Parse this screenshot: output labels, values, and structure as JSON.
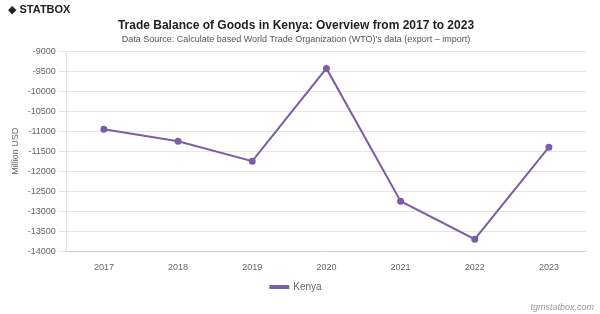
{
  "chart_data": {
    "type": "line",
    "title": "Trade Balance of Goods in Kenya: Overview from 2017 to 2023",
    "subtitle": "Data Source: Calculate based World Trade Organization (WTO)'s data (export – import)",
    "x": [
      2017,
      2018,
      2019,
      2020,
      2021,
      2022,
      2023
    ],
    "series": [
      {
        "name": "Kenya",
        "color": "#7b5ea7",
        "values": [
          -10950,
          -11250,
          -11750,
          -9430,
          -12750,
          -13700,
          -11400
        ]
      }
    ],
    "ylabel": "Million USD",
    "xlim": [
      2016.5,
      2023.5
    ],
    "xticks": [
      2017,
      2018,
      2019,
      2020,
      2021,
      2022,
      2023
    ],
    "ylim": [
      -14000,
      -9000
    ],
    "yticks": [
      -9000,
      -9500,
      -10000,
      -10500,
      -11000,
      -11500,
      -12000,
      -12500,
      -13000,
      -13500,
      -14000
    ],
    "grid": "y",
    "legend": "bottom",
    "annotations": [
      "◆ STATBOX",
      "tgmstatbox.com"
    ]
  }
}
